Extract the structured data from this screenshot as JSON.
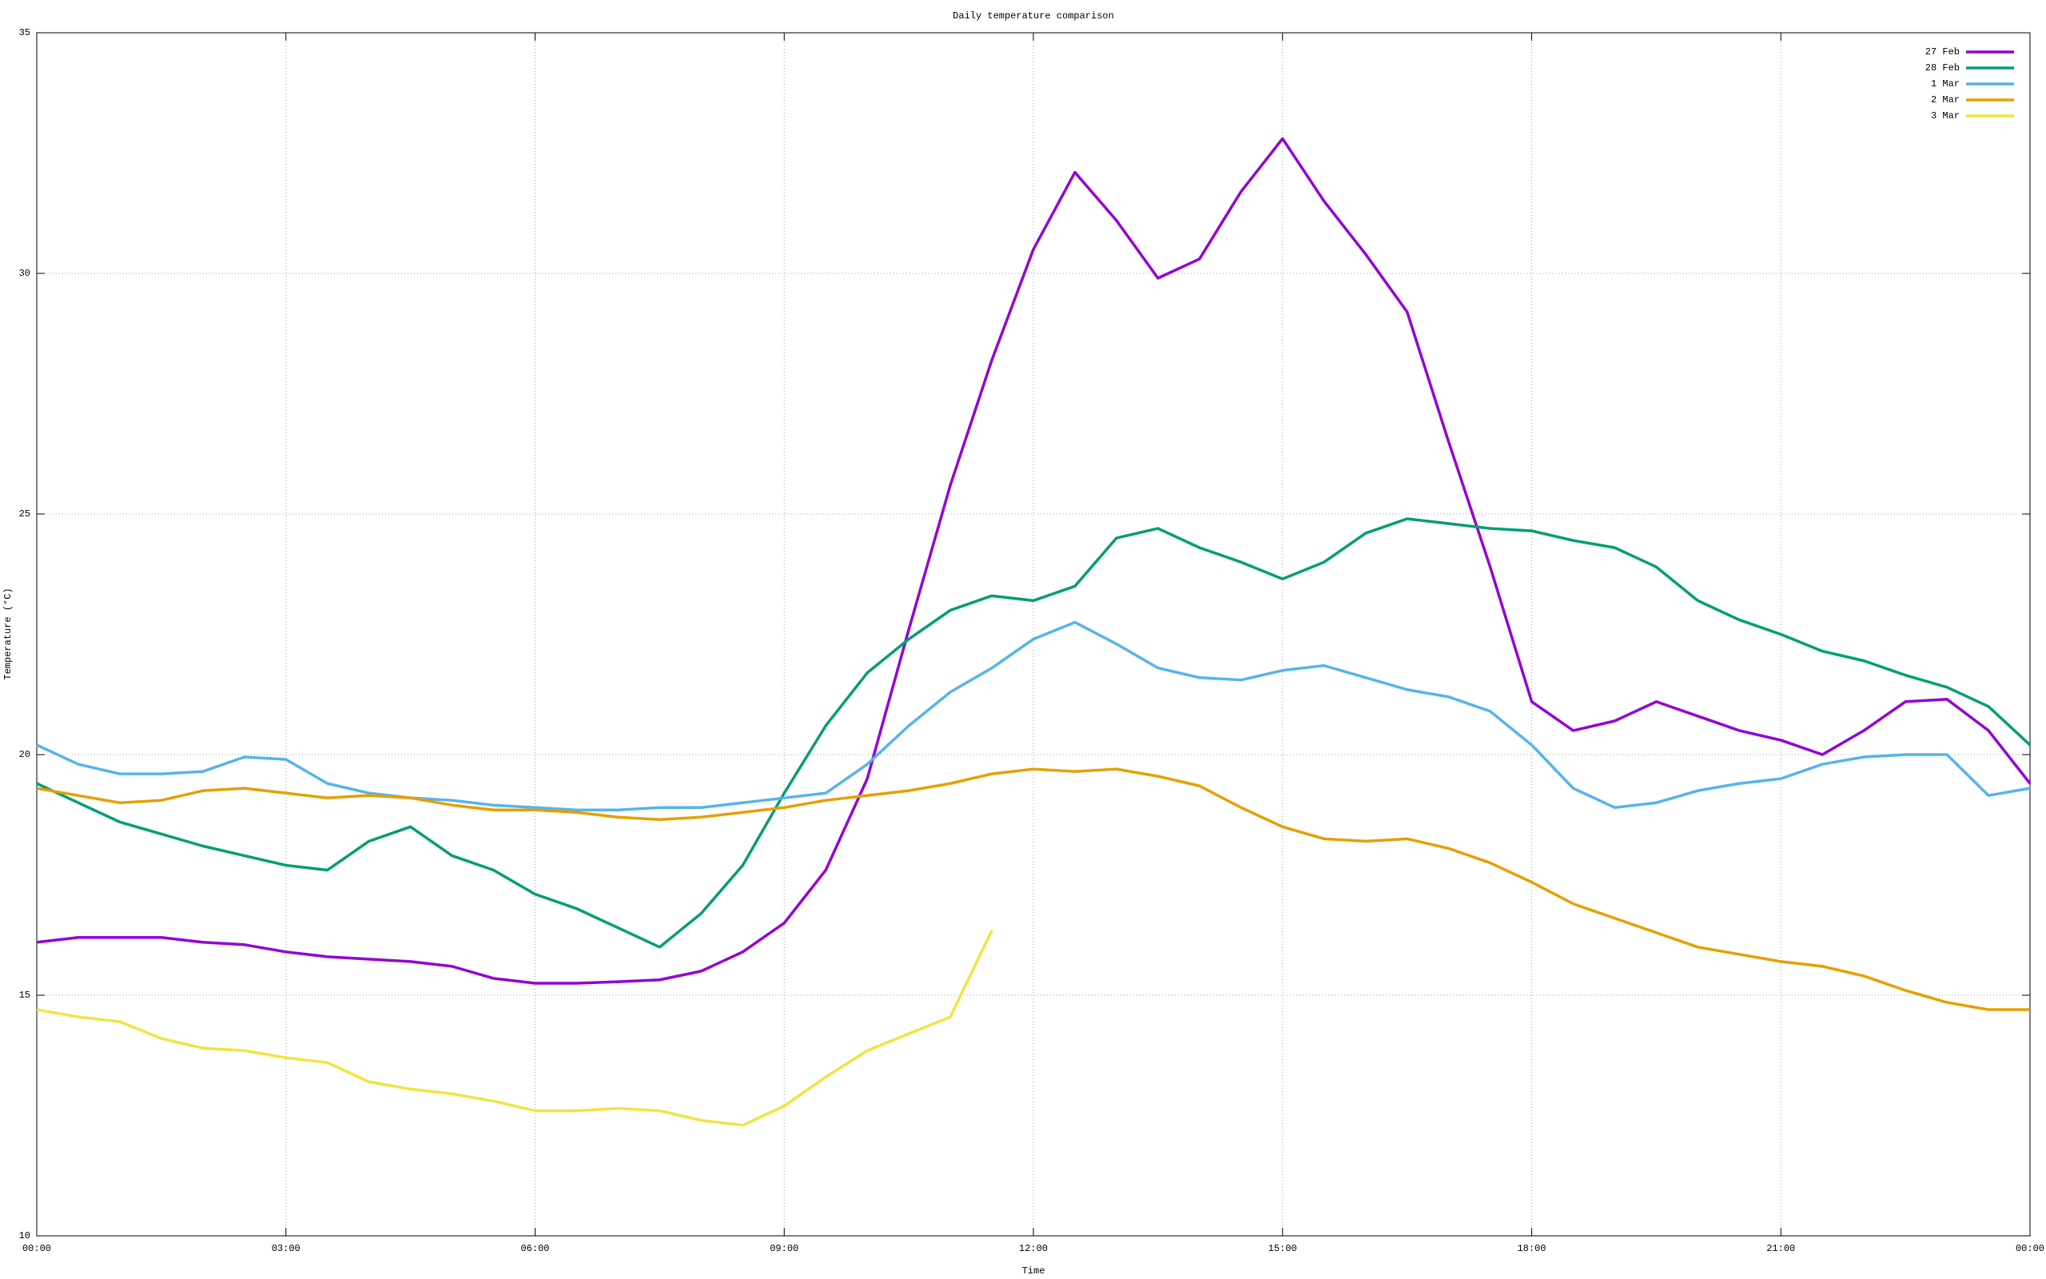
{
  "chart_data": {
    "type": "line",
    "title": "Daily temperature comparison",
    "x_label": "Time",
    "y_label": "Temperature (°C)",
    "x": [
      0,
      0.5,
      1,
      1.5,
      2,
      2.5,
      3,
      3.5,
      4,
      4.5,
      5,
      5.5,
      6,
      6.5,
      7,
      7.5,
      8,
      8.5,
      9,
      9.5,
      10,
      10.5,
      11,
      11.5,
      12,
      12.5,
      13,
      13.5,
      14,
      14.5,
      15,
      15.5,
      16,
      16.5,
      17,
      17.5,
      18,
      18.5,
      19,
      19.5,
      20,
      20.5,
      21,
      21.5,
      22,
      22.5,
      23,
      23.5,
      24
    ],
    "series": [
      {
        "name": "27 Feb",
        "color": "#9400d3",
        "values": [
          16.1,
          16.2,
          16.2,
          16.2,
          16.1,
          16.05,
          15.9,
          15.8,
          15.75,
          15.7,
          15.6,
          15.35,
          15.25,
          15.25,
          15.28,
          15.32,
          15.5,
          15.9,
          16.5,
          17.6,
          19.5,
          22.6,
          25.6,
          28.2,
          30.5,
          32.1,
          31.1,
          29.9,
          30.3,
          31.7,
          32.8,
          31.5,
          30.4,
          29.2,
          26.5,
          23.9,
          21.1,
          20.5,
          20.7,
          21.1,
          20.8,
          20.5,
          20.3,
          20.0,
          20.5,
          21.1,
          21.15,
          20.5,
          19.4
        ]
      },
      {
        "name": "28 Feb",
        "color": "#009e73",
        "values": [
          19.4,
          19.0,
          18.6,
          18.35,
          18.1,
          17.9,
          17.7,
          17.6,
          18.2,
          18.5,
          17.9,
          17.6,
          17.1,
          16.8,
          16.4,
          16.0,
          16.7,
          17.7,
          19.2,
          20.6,
          21.7,
          22.4,
          23.0,
          23.3,
          23.2,
          23.5,
          24.5,
          24.7,
          24.3,
          24.0,
          23.65,
          24.0,
          24.6,
          24.9,
          24.8,
          24.7,
          24.65,
          24.45,
          24.3,
          23.9,
          23.2,
          22.8,
          22.5,
          22.15,
          21.95,
          21.65,
          21.4,
          21.0,
          20.2
        ]
      },
      {
        "name": "1 Mar",
        "color": "#56b4e9",
        "values": [
          20.2,
          19.8,
          19.6,
          19.6,
          19.65,
          19.95,
          19.9,
          19.4,
          19.2,
          19.1,
          19.05,
          18.95,
          18.9,
          18.85,
          18.85,
          18.9,
          18.9,
          19.0,
          19.1,
          19.2,
          19.8,
          20.6,
          21.3,
          21.8,
          22.4,
          22.75,
          22.3,
          21.8,
          21.6,
          21.55,
          21.75,
          21.85,
          21.6,
          21.35,
          21.2,
          20.9,
          20.2,
          19.3,
          18.9,
          19.0,
          19.25,
          19.4,
          19.5,
          19.8,
          19.95,
          20.0,
          20.0,
          19.15,
          19.3
        ]
      },
      {
        "name": "2 Mar",
        "color": "#e69f00",
        "values": [
          19.3,
          19.15,
          19.0,
          19.05,
          19.25,
          19.3,
          19.2,
          19.1,
          19.15,
          19.1,
          18.95,
          18.85,
          18.85,
          18.8,
          18.7,
          18.65,
          18.7,
          18.8,
          18.9,
          19.05,
          19.15,
          19.25,
          19.4,
          19.6,
          19.7,
          19.65,
          19.7,
          19.55,
          19.35,
          18.9,
          18.5,
          18.25,
          18.2,
          18.25,
          18.05,
          17.75,
          17.35,
          16.9,
          16.6,
          16.3,
          16.0,
          15.85,
          15.7,
          15.6,
          15.4,
          15.1,
          14.85,
          14.7,
          14.7
        ]
      },
      {
        "name": "3 Mar",
        "color": "#f0e442",
        "values": [
          14.7,
          14.55,
          14.45,
          14.1,
          13.9,
          13.85,
          13.7,
          13.6,
          13.2,
          13.05,
          12.95,
          12.8,
          12.6,
          12.6,
          12.65,
          12.6,
          12.4,
          12.3,
          12.7,
          13.3,
          13.85,
          14.2,
          14.55,
          16.35,
          null,
          null,
          null,
          null,
          null,
          null,
          null,
          null,
          null,
          null,
          null,
          null,
          null,
          null,
          null,
          null,
          null,
          null,
          null,
          null,
          null,
          null,
          null,
          null,
          null
        ]
      }
    ],
    "xlim": [
      0,
      24
    ],
    "xticks": [
      {
        "value": 0,
        "label": "00:00"
      },
      {
        "value": 3,
        "label": "03:00"
      },
      {
        "value": 6,
        "label": "06:00"
      },
      {
        "value": 9,
        "label": "09:00"
      },
      {
        "value": 12,
        "label": "12:00"
      },
      {
        "value": 15,
        "label": "15:00"
      },
      {
        "value": 18,
        "label": "18:00"
      },
      {
        "value": 21,
        "label": "21:00"
      },
      {
        "value": 24,
        "label": "00:00"
      }
    ],
    "ylim": [
      10,
      35
    ],
    "yticks": [
      10,
      15,
      20,
      25,
      30,
      35
    ],
    "grid": true,
    "legend": "top-right"
  }
}
